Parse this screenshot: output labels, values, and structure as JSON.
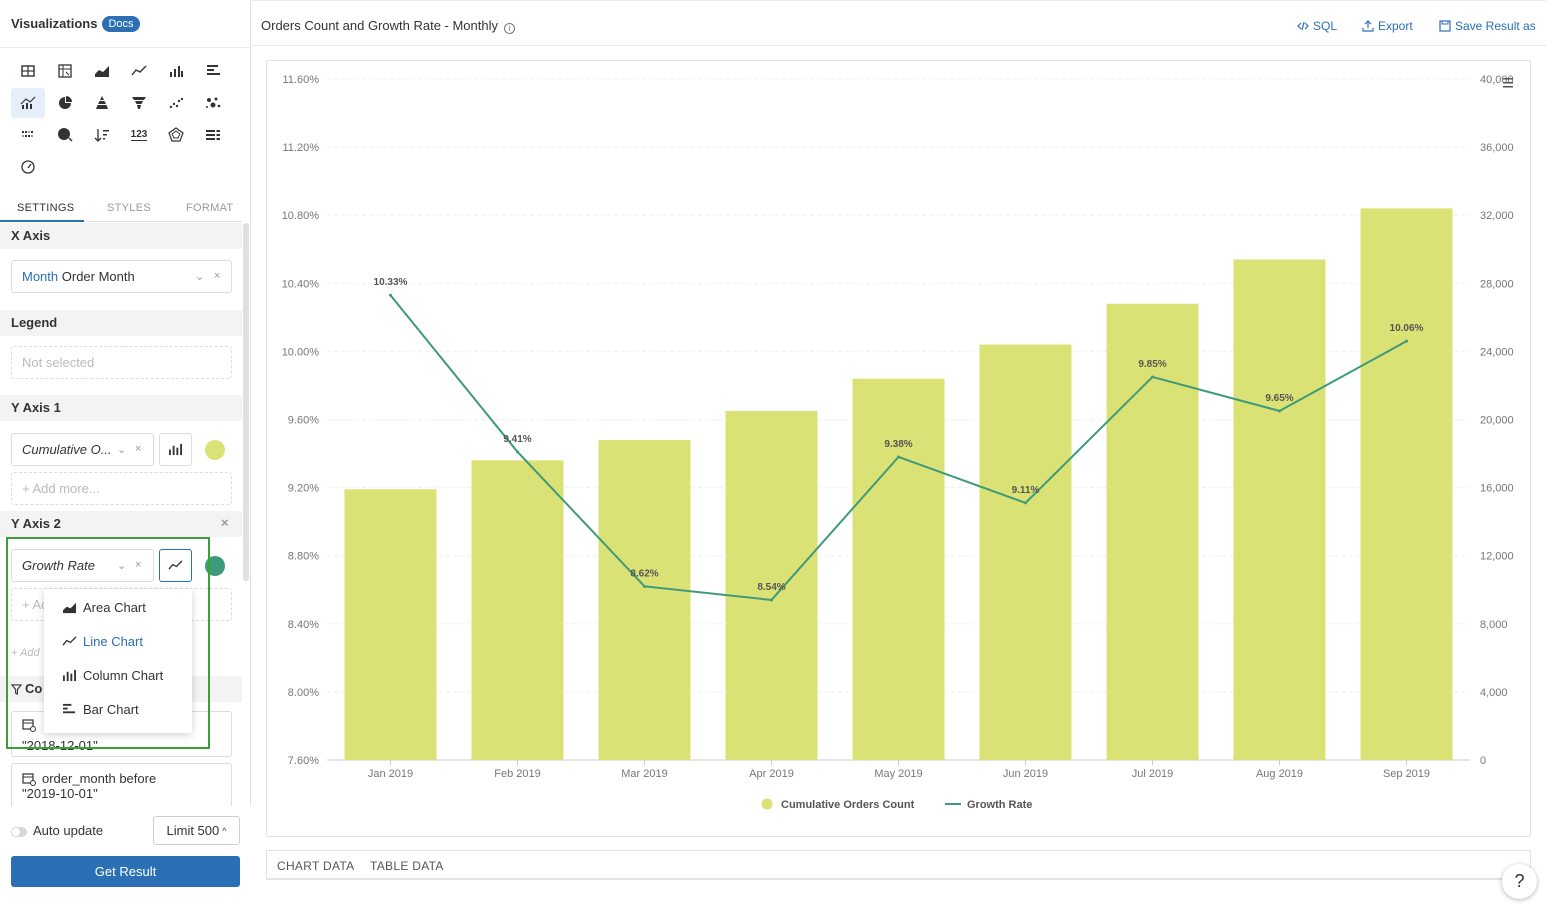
{
  "visualizations": {
    "title": "Visualizations",
    "docs_label": "Docs"
  },
  "tabs": {
    "settings": "SETTINGS",
    "styles": "STYLES",
    "format": "FORMAT"
  },
  "x_axis": {
    "heading": "X Axis",
    "field_prefix": "Month",
    "field_name": "Order Month"
  },
  "legend": {
    "heading": "Legend",
    "placeholder": "Not selected"
  },
  "y_axis_1": {
    "heading": "Y Axis 1",
    "field": "Cumulative O...",
    "add_more": "+ Add more...",
    "color": "#dbe275"
  },
  "y_axis_2": {
    "heading": "Y Axis 2",
    "field": "Growth Rate",
    "add_more_partial": "+ Ac",
    "add_partial": "+ Add",
    "color": "#3d9a7a"
  },
  "conditions": {
    "heading_partial": "Co",
    "filter1_value": "\"2018-12-01\"",
    "filter2_label": "order_month before",
    "filter2_value": "\"2019-10-01\""
  },
  "chart_type_menu": {
    "items": [
      {
        "label": "Area Chart",
        "icon": "area-chart-icon"
      },
      {
        "label": "Line Chart",
        "icon": "line-chart-icon",
        "selected": true
      },
      {
        "label": "Column Chart",
        "icon": "column-chart-icon"
      },
      {
        "label": "Bar Chart",
        "icon": "bar-chart-icon"
      }
    ]
  },
  "bottom": {
    "auto_update": "Auto update",
    "limit": "Limit 500",
    "get_result": "Get Result"
  },
  "header": {
    "title": "Orders Count and Growth Rate - Monthly",
    "sql": "SQL",
    "export": "Export",
    "save": "Save Result as"
  },
  "data_tabs": {
    "chart_data": "CHART DATA",
    "table_data": "TABLE DATA"
  },
  "help": "?",
  "chart_data": {
    "type": "bar",
    "categories": [
      "Jan 2019",
      "Feb 2019",
      "Mar 2019",
      "Apr 2019",
      "May 2019",
      "Jun 2019",
      "Jul 2019",
      "Aug 2019",
      "Sep 2019"
    ],
    "series": [
      {
        "name": "Cumulative Orders Count",
        "type": "bar",
        "axis": "right",
        "color": "#dbe275",
        "values": [
          15900,
          17600,
          18800,
          20500,
          22400,
          24400,
          26800,
          29400,
          32400
        ]
      },
      {
        "name": "Growth Rate",
        "type": "line",
        "axis": "left",
        "color": "#3d9a7a",
        "values": [
          10.33,
          9.41,
          8.62,
          8.54,
          9.38,
          9.11,
          9.85,
          9.65,
          10.06
        ],
        "labels": [
          "10.33%",
          "9.41%",
          "8.62%",
          "8.54%",
          "9.38%",
          "9.11%",
          "9.85%",
          "9.65%",
          "10.06%"
        ]
      }
    ],
    "left_axis": {
      "ylim": [
        7.6,
        11.6
      ],
      "ticks": [
        "7.60%",
        "8.00%",
        "8.40%",
        "8.80%",
        "9.20%",
        "9.60%",
        "10.00%",
        "10.40%",
        "10.80%",
        "11.20%",
        "11.60%"
      ]
    },
    "right_axis": {
      "ylim": [
        0,
        40000
      ],
      "ticks": [
        "0",
        "4,000",
        "8,000",
        "12,000",
        "16,000",
        "20,000",
        "24,000",
        "28,000",
        "32,000",
        "36,000",
        "40,000"
      ]
    },
    "legend_position": "bottom-center",
    "grid": true
  }
}
